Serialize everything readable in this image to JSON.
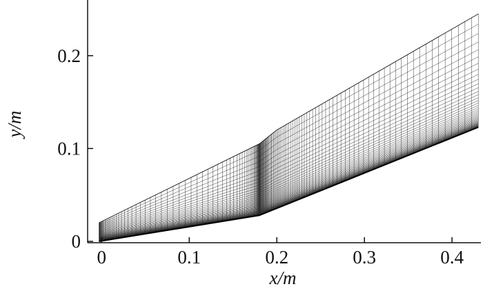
{
  "chart_data": {
    "type": "mesh",
    "x_label": "x/m",
    "y_label": "y/m",
    "xlim": [
      -0.016,
      0.433
    ],
    "ylim": [
      -0.0015,
      0.26
    ],
    "xticks": [
      0,
      0.1,
      0.2,
      0.3,
      0.4
    ],
    "yticks": [
      0,
      0.1,
      0.2
    ],
    "wall": {
      "x": [
        -0.003,
        0.18,
        0.43
      ],
      "y": [
        0.0,
        0.028,
        0.123
      ]
    },
    "outer": {
      "x": [
        -0.003,
        0.18,
        0.2,
        0.43
      ],
      "y": [
        0.02,
        0.105,
        0.12,
        0.245
      ]
    },
    "color": "#222"
  }
}
